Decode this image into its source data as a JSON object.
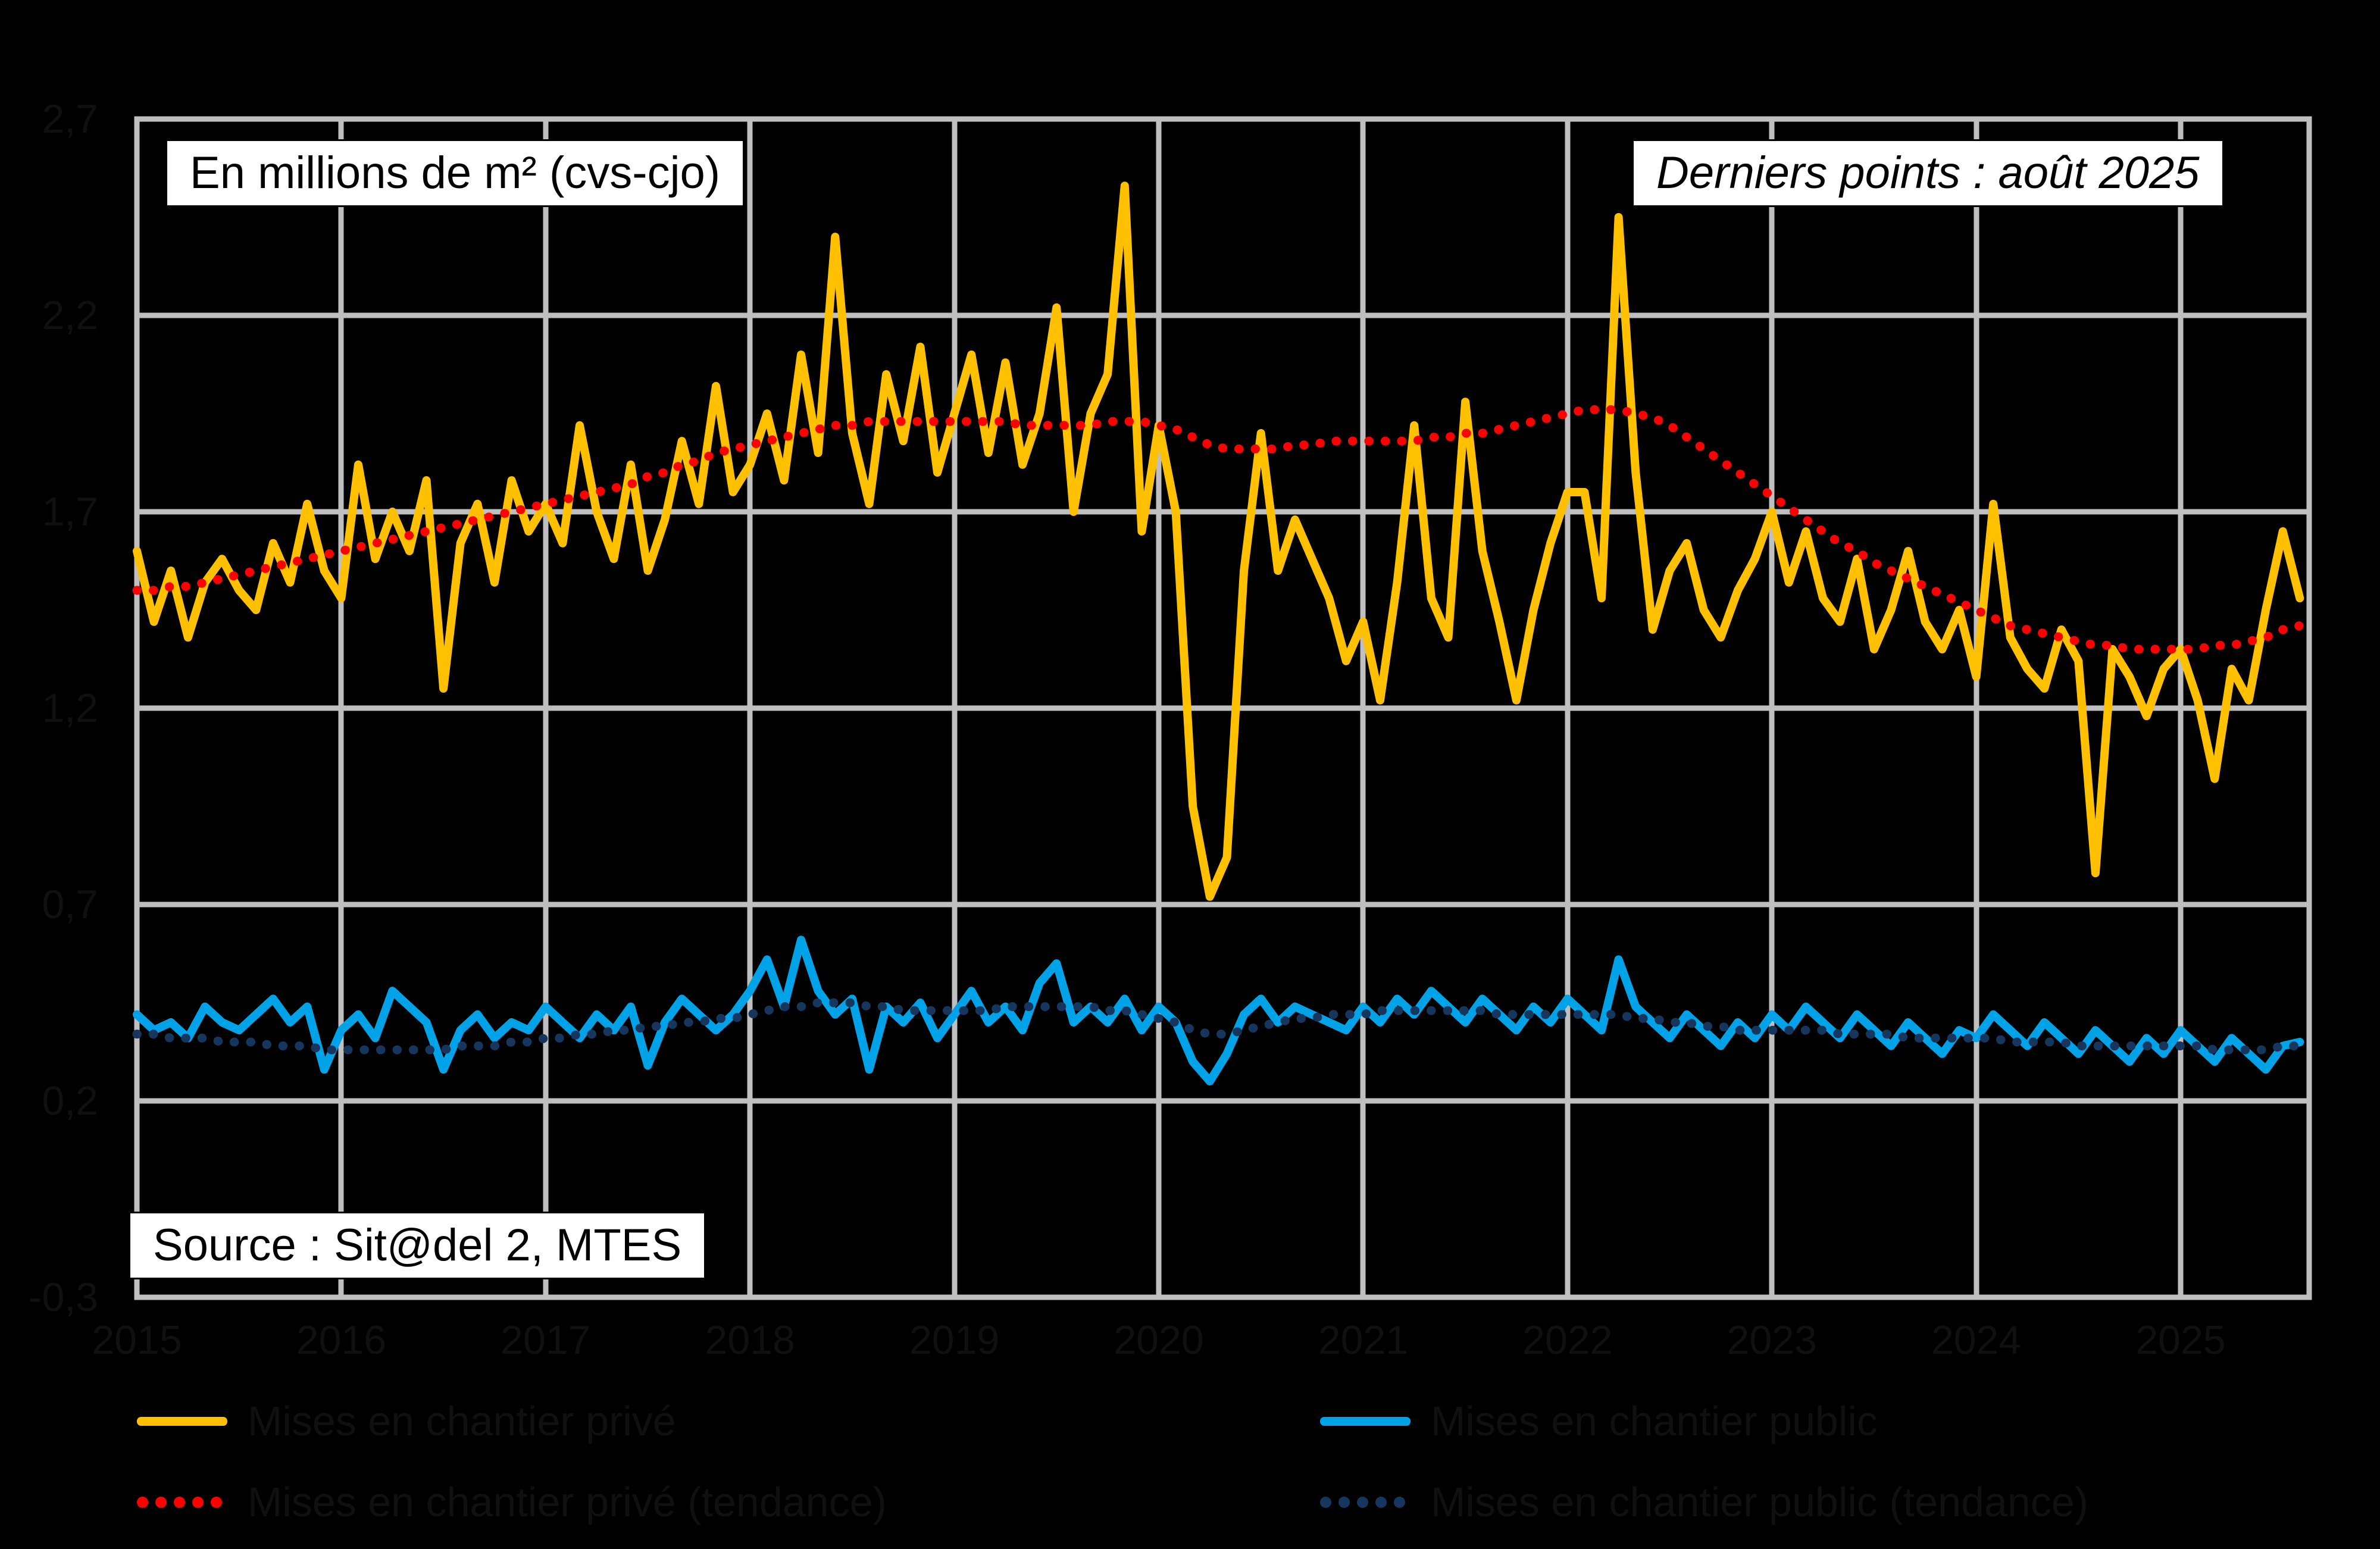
{
  "header": {
    "unit_label": "En millions de m² (cvs-cjo)",
    "last_point_label": "Derniers points : août 2025"
  },
  "source": {
    "label": "Source : Sit@del 2, MTES"
  },
  "colors": {
    "background": "#000000",
    "gridline": "#BFBFBF",
    "plot_border": "#BFBFBF",
    "box_background": "#FFFFFF",
    "box_text": "#000000",
    "axis_text": "#000000",
    "prive": "#FFC000",
    "prive_tendance": "#FF0000",
    "public": "#00A2E8",
    "public_tendance": "#17365D"
  },
  "chart_data": {
    "type": "line",
    "title": "",
    "xlabel": "",
    "ylabel": "En millions de m² (cvs-cjo)",
    "x_start": "2015-01",
    "x_end": "2025-08",
    "x_tick_labels": [
      "2015",
      "2016",
      "2017",
      "2018",
      "2019",
      "2020",
      "2021",
      "2022",
      "2023",
      "2024",
      "2025"
    ],
    "y_axis": {
      "min": -0.3,
      "max": 2.7,
      "ticks": [
        2.7,
        2.2,
        1.7,
        1.2,
        0.7,
        0.2,
        -0.3
      ],
      "tick_labels": [
        "2,7",
        "2,2",
        "1,7",
        "1,2",
        "0,7",
        "0,2",
        "-0,3"
      ],
      "grid": true
    },
    "legend_position": "bottom",
    "series": [
      {
        "name": "Mises en chantier privé",
        "color": "#FFC000",
        "style": "solid",
        "values": [
          1.6,
          1.42,
          1.55,
          1.38,
          1.52,
          1.58,
          1.5,
          1.45,
          1.62,
          1.52,
          1.72,
          1.55,
          1.48,
          1.82,
          1.58,
          1.7,
          1.6,
          1.78,
          1.25,
          1.62,
          1.72,
          1.52,
          1.78,
          1.65,
          1.72,
          1.62,
          1.92,
          1.7,
          1.58,
          1.82,
          1.55,
          1.68,
          1.88,
          1.72,
          2.02,
          1.75,
          1.82,
          1.95,
          1.78,
          2.1,
          1.85,
          2.4,
          1.9,
          1.72,
          2.05,
          1.88,
          2.12,
          1.8,
          1.95,
          2.1,
          1.85,
          2.08,
          1.82,
          1.95,
          2.22,
          1.7,
          1.95,
          2.05,
          2.53,
          1.65,
          1.92,
          1.7,
          0.95,
          0.72,
          0.82,
          1.55,
          1.9,
          1.55,
          1.68,
          1.58,
          1.48,
          1.32,
          1.42,
          1.22,
          1.52,
          1.92,
          1.48,
          1.38,
          1.98,
          1.6,
          1.42,
          1.22,
          1.45,
          1.62,
          1.75,
          1.75,
          1.48,
          2.45,
          1.8,
          1.4,
          1.55,
          1.62,
          1.45,
          1.38,
          1.5,
          1.58,
          1.7,
          1.52,
          1.65,
          1.48,
          1.42,
          1.58,
          1.35,
          1.45,
          1.6,
          1.42,
          1.35,
          1.45,
          1.28,
          1.72,
          1.38,
          1.3,
          1.25,
          1.4,
          1.32,
          0.78,
          1.35,
          1.28,
          1.18,
          1.3,
          1.35,
          1.22,
          1.02,
          1.3,
          1.22,
          1.45,
          1.65,
          1.48
        ]
      },
      {
        "name": "Mises en chantier privé (tendance)",
        "color": "#FF0000",
        "style": "dotted",
        "values": [
          1.5,
          1.5,
          1.51,
          1.51,
          1.52,
          1.53,
          1.54,
          1.55,
          1.56,
          1.57,
          1.58,
          1.59,
          1.6,
          1.61,
          1.62,
          1.63,
          1.64,
          1.65,
          1.66,
          1.67,
          1.68,
          1.69,
          1.7,
          1.71,
          1.72,
          1.73,
          1.74,
          1.75,
          1.76,
          1.77,
          1.79,
          1.8,
          1.82,
          1.83,
          1.85,
          1.86,
          1.87,
          1.88,
          1.89,
          1.9,
          1.91,
          1.92,
          1.92,
          1.93,
          1.93,
          1.93,
          1.93,
          1.93,
          1.93,
          1.93,
          1.93,
          1.93,
          1.92,
          1.92,
          1.92,
          1.92,
          1.92,
          1.93,
          1.93,
          1.93,
          1.92,
          1.91,
          1.89,
          1.87,
          1.86,
          1.86,
          1.86,
          1.86,
          1.87,
          1.87,
          1.88,
          1.88,
          1.88,
          1.88,
          1.88,
          1.88,
          1.89,
          1.89,
          1.9,
          1.9,
          1.91,
          1.92,
          1.93,
          1.94,
          1.95,
          1.96,
          1.96,
          1.96,
          1.95,
          1.94,
          1.92,
          1.89,
          1.86,
          1.83,
          1.8,
          1.77,
          1.74,
          1.71,
          1.68,
          1.65,
          1.62,
          1.6,
          1.57,
          1.55,
          1.53,
          1.51,
          1.49,
          1.47,
          1.45,
          1.43,
          1.41,
          1.4,
          1.39,
          1.38,
          1.37,
          1.36,
          1.36,
          1.35,
          1.35,
          1.35,
          1.35,
          1.35,
          1.36,
          1.36,
          1.37,
          1.38,
          1.4,
          1.41
        ]
      },
      {
        "name": "Mises en chantier public",
        "color": "#00A2E8",
        "style": "solid",
        "values": [
          0.42,
          0.38,
          0.4,
          0.36,
          0.44,
          0.4,
          0.38,
          0.42,
          0.46,
          0.4,
          0.44,
          0.28,
          0.38,
          0.42,
          0.36,
          0.48,
          0.44,
          0.4,
          0.28,
          0.38,
          0.42,
          0.36,
          0.4,
          0.38,
          0.44,
          0.4,
          0.36,
          0.42,
          0.38,
          0.44,
          0.29,
          0.4,
          0.46,
          0.42,
          0.38,
          0.42,
          0.48,
          0.56,
          0.44,
          0.61,
          0.48,
          0.42,
          0.46,
          0.28,
          0.44,
          0.4,
          0.45,
          0.36,
          0.42,
          0.48,
          0.4,
          0.44,
          0.38,
          0.5,
          0.55,
          0.4,
          0.44,
          0.4,
          0.46,
          0.38,
          0.44,
          0.4,
          0.3,
          0.25,
          0.32,
          0.42,
          0.46,
          0.4,
          0.44,
          0.42,
          0.4,
          0.38,
          0.44,
          0.4,
          0.46,
          0.42,
          0.48,
          0.44,
          0.4,
          0.46,
          0.42,
          0.38,
          0.44,
          0.4,
          0.46,
          0.42,
          0.38,
          0.56,
          0.44,
          0.4,
          0.36,
          0.42,
          0.38,
          0.34,
          0.4,
          0.36,
          0.42,
          0.38,
          0.44,
          0.4,
          0.36,
          0.42,
          0.38,
          0.34,
          0.4,
          0.36,
          0.32,
          0.38,
          0.36,
          0.42,
          0.38,
          0.34,
          0.4,
          0.36,
          0.32,
          0.38,
          0.34,
          0.3,
          0.36,
          0.32,
          0.38,
          0.34,
          0.3,
          0.36,
          0.32,
          0.28,
          0.34,
          0.35
        ]
      },
      {
        "name": "Mises en chantier public (tendance)",
        "color": "#17365D",
        "style": "dotted",
        "values": [
          0.37,
          0.37,
          0.36,
          0.36,
          0.36,
          0.35,
          0.35,
          0.35,
          0.34,
          0.34,
          0.34,
          0.33,
          0.33,
          0.33,
          0.33,
          0.33,
          0.33,
          0.33,
          0.33,
          0.34,
          0.34,
          0.34,
          0.35,
          0.35,
          0.36,
          0.36,
          0.37,
          0.37,
          0.38,
          0.38,
          0.39,
          0.39,
          0.4,
          0.4,
          0.41,
          0.41,
          0.42,
          0.43,
          0.44,
          0.44,
          0.45,
          0.45,
          0.45,
          0.44,
          0.44,
          0.43,
          0.43,
          0.43,
          0.43,
          0.43,
          0.43,
          0.44,
          0.44,
          0.44,
          0.44,
          0.44,
          0.44,
          0.43,
          0.43,
          0.42,
          0.41,
          0.4,
          0.38,
          0.37,
          0.37,
          0.38,
          0.39,
          0.4,
          0.41,
          0.41,
          0.42,
          0.42,
          0.42,
          0.43,
          0.43,
          0.43,
          0.43,
          0.43,
          0.43,
          0.43,
          0.42,
          0.42,
          0.42,
          0.42,
          0.42,
          0.42,
          0.42,
          0.42,
          0.41,
          0.41,
          0.4,
          0.4,
          0.39,
          0.39,
          0.38,
          0.38,
          0.38,
          0.38,
          0.38,
          0.38,
          0.37,
          0.37,
          0.37,
          0.37,
          0.36,
          0.36,
          0.36,
          0.36,
          0.36,
          0.36,
          0.35,
          0.35,
          0.35,
          0.35,
          0.34,
          0.34,
          0.34,
          0.34,
          0.34,
          0.34,
          0.34,
          0.34,
          0.33,
          0.33,
          0.33,
          0.33,
          0.34,
          0.34
        ]
      }
    ]
  }
}
